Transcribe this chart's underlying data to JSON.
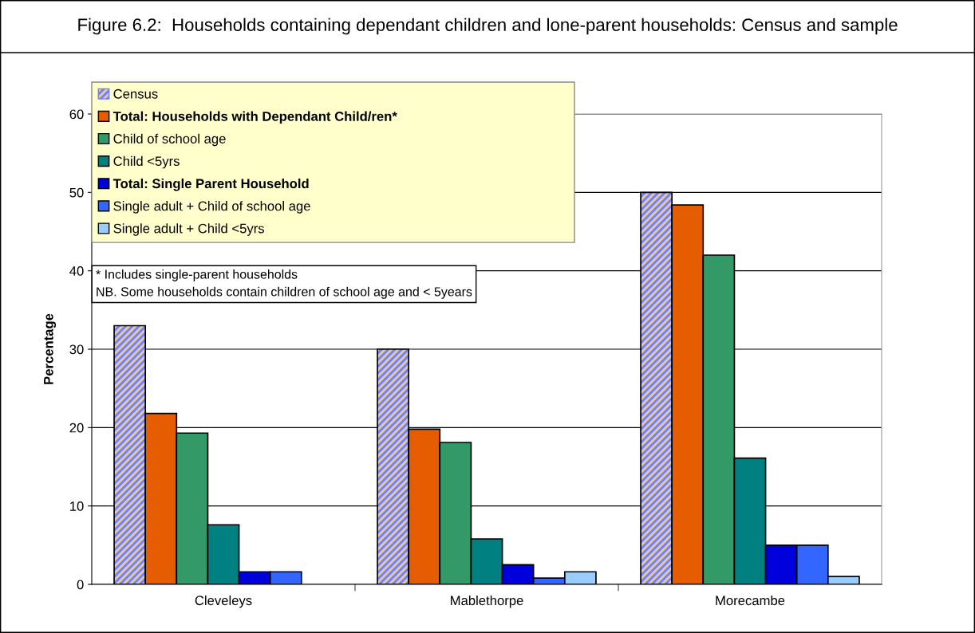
{
  "chart_data": {
    "type": "bar",
    "title": "Figure 6.2:  Households containing dependant children and lone-parent households: Census and sample",
    "ylabel": "Percentage",
    "categories": [
      "Cleveleys",
      "Mablethorpe",
      "Morecambe"
    ],
    "series": [
      {
        "name": "Census",
        "color": "#6f7fff",
        "values": [
          33,
          30,
          50
        ]
      },
      {
        "name": "Total: Households with Dependant Child/ren*",
        "color": "#e65c00",
        "values": [
          21.8,
          19.8,
          48.4
        ]
      },
      {
        "name": "Child of school age",
        "color": "#339966",
        "values": [
          19.3,
          18.1,
          42
        ]
      },
      {
        "name": "Child <5yrs",
        "color": "#008080",
        "values": [
          7.6,
          5.8,
          16.1
        ]
      },
      {
        "name": "Total: Single Parent Household",
        "color": "#0000dd",
        "values": [
          1.6,
          2.5,
          5.0
        ]
      },
      {
        "name": "Single adult + Child of school age",
        "color": "#3366ff",
        "values": [
          1.6,
          0.8,
          5.0
        ]
      },
      {
        "name": "Single adult + Child <5yrs",
        "color": "#99ccff",
        "values": [
          null,
          1.6,
          1.0
        ]
      }
    ],
    "ylim": [
      0,
      60
    ],
    "yticks": [
      0,
      10,
      20,
      30,
      40,
      50,
      60
    ],
    "grid": "y",
    "legend": "top left",
    "annotations": [
      "* Includes single-parent households",
      "NB. Some households contain children of school age and < 5years"
    ]
  }
}
